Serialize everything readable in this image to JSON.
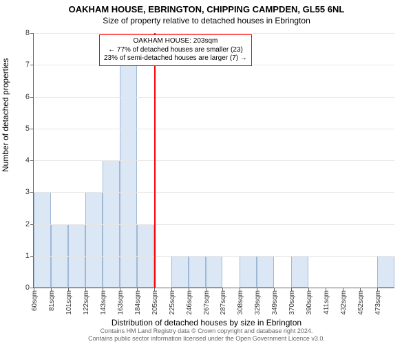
{
  "title": "OAKHAM HOUSE, EBRINGTON, CHIPPING CAMPDEN, GL55 6NL",
  "subtitle": "Size of property relative to detached houses in Ebrington",
  "ylabel": "Number of detached properties",
  "xlabel": "Distribution of detached houses by size in Ebrington",
  "chart": {
    "type": "histogram",
    "ymax": 8,
    "ytick_step": 1,
    "grid_color": "#e6e6e6",
    "bar_fill": "#dbe7f5",
    "bar_border": "#9fb8d6",
    "background": "#ffffff",
    "categories": [
      "60sqm",
      "81sqm",
      "101sqm",
      "122sqm",
      "143sqm",
      "163sqm",
      "184sqm",
      "205sqm",
      "225sqm",
      "246sqm",
      "267sqm",
      "287sqm",
      "308sqm",
      "329sqm",
      "349sqm",
      "370sqm",
      "390sqm",
      "411sqm",
      "432sqm",
      "452sqm",
      "473sqm"
    ],
    "values": [
      3,
      2,
      2,
      3,
      4,
      7,
      2,
      0,
      1,
      1,
      1,
      0,
      1,
      1,
      0,
      1,
      0,
      0,
      0,
      0,
      1
    ],
    "reference_line": {
      "bin_index": 7,
      "color": "#ff0000"
    }
  },
  "annotation": {
    "border_color": "#ff0000",
    "line1": "OAKHAM HOUSE: 203sqm",
    "line2": "← 77% of detached houses are smaller (23)",
    "line3": "23% of semi-detached houses are larger (7) →"
  },
  "footer": {
    "line1": "Contains HM Land Registry data © Crown copyright and database right 2024.",
    "line2": "Contains public sector information licensed under the Open Government Licence v3.0."
  }
}
